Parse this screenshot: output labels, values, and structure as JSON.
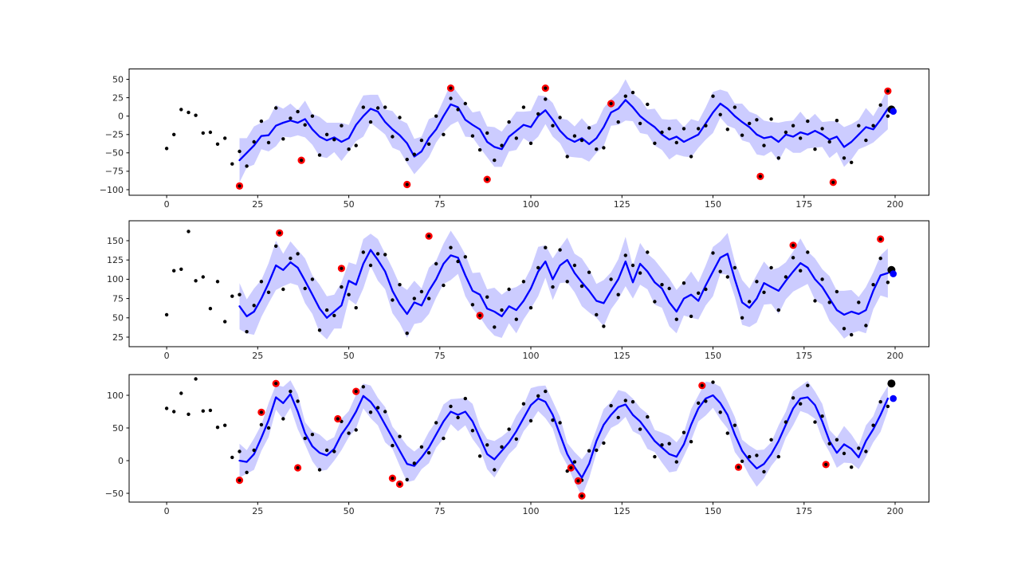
{
  "figure": {
    "background": "#ffffff"
  },
  "colors": {
    "mean_line": "#0000ff",
    "band": "#0000ff",
    "band_opacity": 0.2,
    "observations": "#000000",
    "anomaly": "#ff0000",
    "anomaly_center": "#000000",
    "latest_observation": "#000000",
    "latest_prediction": "#0000ff",
    "spine": "#000000",
    "tick_label": "#262626"
  },
  "chart_data": [
    {
      "type": "line",
      "title": "",
      "xlabel": "",
      "ylabel": "",
      "grid": false,
      "legend": null,
      "xlim": [
        -10.3,
        209.3
      ],
      "ylim": [
        -107.6,
        64.1
      ],
      "xticks": [
        0,
        25,
        50,
        75,
        100,
        125,
        150,
        175,
        200
      ],
      "yticks": [
        50,
        25,
        0,
        -25,
        -50,
        -75,
        -100
      ],
      "observations_scatter": {
        "x0": 0,
        "dx": 2,
        "y": [
          -44,
          -25,
          9,
          5,
          1,
          -23,
          -22,
          -38,
          -30,
          -65,
          -48,
          -68,
          -35,
          -7,
          -36,
          11,
          -31,
          -3,
          6,
          -12,
          0,
          -53,
          -25,
          -32,
          -13,
          -45,
          -40,
          12,
          -8,
          11,
          12,
          -28,
          -2,
          -59,
          -52,
          -33,
          -38,
          0,
          -25,
          24,
          9,
          17,
          -27,
          -46,
          -23,
          -60,
          -40,
          -8,
          -30,
          12,
          -37,
          3,
          23,
          -13,
          -2,
          -55,
          -27,
          -33,
          -16,
          -45,
          -43,
          17,
          -8,
          27,
          32,
          -10,
          16,
          -37,
          -22,
          -17,
          -36,
          -17,
          -55,
          -17,
          -13,
          27,
          2,
          -18,
          12,
          -26,
          -10,
          -5,
          -40,
          -4,
          -57,
          -22,
          -13,
          -30,
          -7,
          -45,
          -17,
          -35,
          -6,
          -57,
          -63,
          -13,
          -33,
          -13,
          15,
          0
        ]
      },
      "mean_line": {
        "x0": 20,
        "dx": 2,
        "y": [
          -60,
          -50,
          -40,
          -27,
          -26,
          -13,
          -9,
          -6,
          -9,
          -4,
          -18,
          -28,
          -33,
          -29,
          -35,
          -30,
          -12,
          0,
          10,
          6,
          -8,
          -18,
          -26,
          -37,
          -55,
          -48,
          -30,
          -18,
          0,
          16,
          12,
          -5,
          -12,
          -18,
          -35,
          -42,
          -45,
          -28,
          -20,
          -12,
          -15,
          0,
          8,
          -5,
          -20,
          -30,
          -35,
          -30,
          -38,
          -30,
          -15,
          5,
          10,
          22,
          12,
          0,
          -8,
          -15,
          -25,
          -32,
          -28,
          -35,
          -30,
          -25,
          -10,
          5,
          17,
          10,
          0,
          -8,
          -15,
          -25,
          -30,
          -28,
          -35,
          -25,
          -28,
          -22,
          -25,
          -20,
          -25,
          -32,
          -28,
          -42,
          -35,
          -25,
          -15,
          -18,
          -5,
          10
        ]
      },
      "band_halfwidth": {
        "x0": 20,
        "dx": 2,
        "y": [
          30,
          20,
          26,
          18,
          22,
          28,
          19,
          23,
          17,
          25,
          21,
          27,
          24,
          20,
          26,
          18,
          22,
          28,
          19,
          23,
          17,
          25,
          21,
          27,
          24,
          20,
          26,
          18,
          22,
          28,
          19,
          23,
          17,
          25,
          21,
          27,
          24,
          20,
          26,
          18,
          22,
          28,
          19,
          23,
          17,
          25,
          21,
          27,
          24,
          20,
          26,
          18,
          22,
          28,
          19,
          23,
          17,
          25,
          21,
          27,
          24,
          20,
          26,
          18,
          22,
          28,
          19,
          23,
          17,
          25,
          21,
          27,
          24,
          20,
          26,
          18,
          22,
          28,
          19,
          23,
          17,
          25,
          21,
          27,
          24,
          20,
          26,
          18,
          22,
          28
        ]
      },
      "anomalies_red": [
        [
          20,
          -95
        ],
        [
          37,
          -60
        ],
        [
          66,
          -93
        ],
        [
          78,
          38
        ],
        [
          88,
          -86
        ],
        [
          104,
          38
        ],
        [
          122,
          17
        ],
        [
          163,
          -82
        ],
        [
          183,
          -90
        ],
        [
          198,
          34
        ]
      ],
      "latest_observation": [
        199,
        9
      ],
      "latest_prediction": [
        199.5,
        6.5
      ]
    },
    {
      "type": "line",
      "title": "",
      "xlabel": "",
      "ylabel": "",
      "grid": false,
      "legend": null,
      "xlim": [
        -10.3,
        209.3
      ],
      "ylim": [
        12.6,
        175.8
      ],
      "xticks": [
        0,
        25,
        50,
        75,
        100,
        125,
        150,
        175,
        200
      ],
      "yticks": [
        150,
        125,
        100,
        75,
        50,
        25
      ],
      "observations_scatter": {
        "x0": 0,
        "dx": 2,
        "y": [
          54,
          111,
          113,
          162,
          98,
          103,
          62,
          97,
          45,
          78,
          80,
          32,
          66,
          97,
          83,
          143,
          87,
          127,
          133,
          88,
          100,
          34,
          60,
          53,
          90,
          80,
          63,
          135,
          118,
          133,
          132,
          73,
          93,
          30,
          75,
          84,
          75,
          120,
          92,
          141,
          123,
          129,
          67,
          50,
          77,
          38,
          60,
          87,
          48,
          97,
          63,
          115,
          141,
          90,
          138,
          97,
          118,
          91,
          109,
          54,
          39,
          100,
          80,
          131,
          118,
          108,
          135,
          71,
          93,
          88,
          48,
          95,
          52,
          82,
          87,
          134,
          110,
          103,
          115,
          50,
          71,
          97,
          83,
          115,
          60,
          103,
          128,
          111,
          135,
          72,
          100,
          70,
          84,
          36,
          28,
          70,
          40,
          93,
          127,
          96
        ]
      },
      "mean_line": {
        "x0": 20,
        "dx": 2,
        "y": [
          65,
          52,
          58,
          75,
          95,
          118,
          112,
          122,
          115,
          98,
          80,
          62,
          50,
          58,
          66,
          98,
          93,
          120,
          138,
          125,
          110,
          85,
          68,
          55,
          70,
          66,
          85,
          100,
          120,
          131,
          128,
          105,
          85,
          80,
          62,
          58,
          52,
          65,
          60,
          72,
          88,
          110,
          123,
          100,
          118,
          125,
          108,
          96,
          85,
          72,
          69,
          85,
          100,
          123,
          96,
          120,
          110,
          96,
          88,
          70,
          58,
          75,
          80,
          72,
          92,
          110,
          128,
          133,
          100,
          70,
          63,
          75,
          95,
          90,
          85,
          98,
          110,
          121,
          115,
          100,
          90,
          75,
          60,
          54,
          58,
          55,
          60,
          85,
          105,
          108
        ]
      },
      "band_halfwidth": {
        "x0": 20,
        "dx": 2,
        "y": [
          30,
          22,
          30,
          24,
          26,
          32,
          21,
          27,
          23,
          29,
          25,
          31,
          28,
          22,
          30,
          24,
          26,
          32,
          21,
          27,
          23,
          29,
          25,
          31,
          28,
          22,
          30,
          24,
          26,
          32,
          21,
          27,
          23,
          29,
          25,
          31,
          28,
          22,
          30,
          24,
          26,
          32,
          21,
          27,
          23,
          29,
          25,
          31,
          28,
          22,
          30,
          24,
          26,
          32,
          21,
          27,
          23,
          29,
          25,
          31,
          28,
          22,
          30,
          24,
          26,
          32,
          21,
          27,
          23,
          29,
          25,
          31,
          28,
          22,
          30,
          24,
          26,
          32,
          21,
          27,
          23,
          29,
          25,
          31,
          28,
          22,
          30,
          24,
          26,
          32
        ]
      },
      "anomalies_red": [
        [
          31,
          160
        ],
        [
          48,
          114
        ],
        [
          72,
          156
        ],
        [
          86,
          53
        ],
        [
          172,
          144
        ],
        [
          196,
          152
        ]
      ],
      "latest_observation": [
        199,
        112
      ],
      "latest_prediction": [
        199.5,
        107
      ]
    },
    {
      "type": "line",
      "title": "",
      "xlabel": "",
      "ylabel": "",
      "grid": false,
      "legend": null,
      "xlim": [
        -10.3,
        209.3
      ],
      "ylim": [
        -63.4,
        131.7
      ],
      "xticks": [
        0,
        25,
        50,
        75,
        100,
        125,
        150,
        175,
        200
      ],
      "yticks": [
        100,
        50,
        0,
        -50
      ],
      "observations_scatter": {
        "x0": 0,
        "dx": 2,
        "y": [
          80,
          75,
          103,
          71,
          125,
          76,
          77,
          51,
          54,
          5,
          14,
          -18,
          16,
          55,
          50,
          119,
          64,
          106,
          91,
          34,
          40,
          -14,
          16,
          14,
          60,
          42,
          47,
          113,
          74,
          81,
          75,
          23,
          37,
          -29,
          -4,
          21,
          12,
          58,
          34,
          83,
          66,
          95,
          46,
          7,
          24,
          -14,
          21,
          48,
          33,
          87,
          61,
          99,
          106,
          62,
          58,
          -16,
          -2,
          -30,
          15,
          16,
          27,
          84,
          66,
          92,
          90,
          48,
          67,
          6,
          24,
          26,
          -2,
          43,
          29,
          88,
          91,
          120,
          74,
          42,
          54,
          -1,
          6,
          8,
          -17,
          32,
          6,
          59,
          96,
          87,
          115,
          59,
          68,
          26,
          32,
          11,
          -10,
          19,
          14,
          54,
          90,
          83
        ]
      },
      "mean_line": {
        "x0": 20,
        "dx": 2,
        "y": [
          0,
          -2,
          10,
          35,
          62,
          97,
          88,
          102,
          75,
          42,
          22,
          12,
          8,
          18,
          40,
          56,
          75,
          99,
          90,
          75,
          55,
          35,
          15,
          -5,
          -8,
          5,
          20,
          40,
          60,
          75,
          70,
          75,
          60,
          35,
          10,
          2,
          15,
          28,
          45,
          65,
          85,
          95,
          90,
          70,
          40,
          10,
          -10,
          -26,
          -5,
          30,
          55,
          70,
          82,
          86,
          70,
          60,
          45,
          30,
          20,
          10,
          6,
          25,
          55,
          80,
          95,
          100,
          88,
          70,
          40,
          15,
          0,
          -12,
          -5,
          10,
          30,
          55,
          80,
          95,
          97,
          85,
          60,
          30,
          12,
          25,
          18,
          5,
          30,
          48,
          70,
          95
        ]
      },
      "band_halfwidth": {
        "x0": 20,
        "dx": 2,
        "y": [
          26,
          18,
          24,
          20,
          26,
          19,
          25,
          21,
          27,
          17,
          23,
          28,
          22,
          18,
          24,
          20,
          26,
          19,
          25,
          21,
          27,
          17,
          23,
          28,
          22,
          18,
          24,
          20,
          26,
          19,
          25,
          21,
          27,
          17,
          23,
          28,
          22,
          18,
          24,
          20,
          26,
          19,
          25,
          21,
          27,
          17,
          23,
          28,
          22,
          18,
          24,
          20,
          26,
          19,
          25,
          21,
          27,
          17,
          23,
          28,
          22,
          18,
          24,
          20,
          26,
          19,
          25,
          21,
          27,
          17,
          23,
          28,
          22,
          18,
          24,
          20,
          26,
          19,
          25,
          21,
          27,
          17,
          23,
          28,
          22,
          18,
          24,
          20,
          26,
          19
        ]
      },
      "anomalies_red": [
        [
          20,
          -30
        ],
        [
          26,
          74
        ],
        [
          30,
          118
        ],
        [
          36,
          -11
        ],
        [
          47,
          64
        ],
        [
          52,
          106
        ],
        [
          62,
          -27
        ],
        [
          64,
          -36
        ],
        [
          111,
          -11
        ],
        [
          113,
          -31
        ],
        [
          114,
          -54
        ],
        [
          147,
          115
        ],
        [
          157,
          -10
        ],
        [
          181,
          -6
        ]
      ],
      "latest_observation": [
        199,
        118
      ],
      "latest_prediction": [
        199.5,
        95
      ]
    }
  ]
}
